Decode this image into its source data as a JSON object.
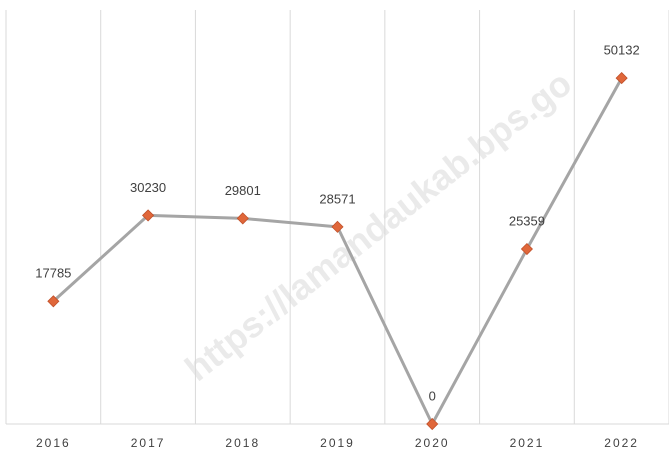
{
  "chart_data": {
    "type": "line",
    "categories": [
      "2016",
      "2017",
      "2018",
      "2019",
      "2020",
      "2021",
      "2022"
    ],
    "series": [
      {
        "name": null,
        "color": "#a5a5a5",
        "marker_color": "#e0673a",
        "values": [
          17785,
          30230,
          29801,
          28571,
          0,
          25359,
          50132
        ]
      }
    ],
    "ylim": [
      0,
      60000
    ],
    "grid": "vertical",
    "watermark": "https://lamandaukab.bps.go"
  }
}
